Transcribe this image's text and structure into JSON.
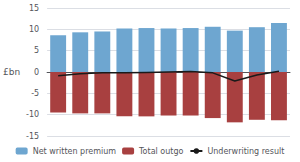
{
  "chart_data": {
    "type": "bar",
    "ylabel": "£bn",
    "categories": [
      null,
      null,
      null,
      null,
      null,
      null,
      null,
      null,
      null,
      null,
      null
    ],
    "series": [
      {
        "name": "Net written premium",
        "type": "bar",
        "color": "#6EA6D0",
        "values": [
          8.6,
          9.3,
          9.5,
          10.2,
          10.3,
          10.2,
          10.3,
          10.6,
          9.7,
          10.5,
          11.5
        ]
      },
      {
        "name": "Total outgo",
        "type": "bar",
        "color": "#A84040",
        "values": [
          -9.5,
          -9.7,
          -9.7,
          -10.4,
          -10.4,
          -10.2,
          -10.2,
          -10.8,
          -11.8,
          -11.2,
          -11.3
        ]
      },
      {
        "name": "Underwriting result",
        "type": "line",
        "color": "#1A1A1A",
        "values": [
          -0.9,
          -0.4,
          -0.2,
          -0.2,
          -0.1,
          0.0,
          0.1,
          -0.2,
          -2.1,
          -0.7,
          0.2
        ]
      }
    ],
    "ylim": [
      -15,
      15
    ],
    "yticks": [
      -15,
      -10,
      -5,
      0,
      5,
      10,
      15
    ],
    "grid": true,
    "legend": "bottom",
    "tick_labels": "y"
  }
}
